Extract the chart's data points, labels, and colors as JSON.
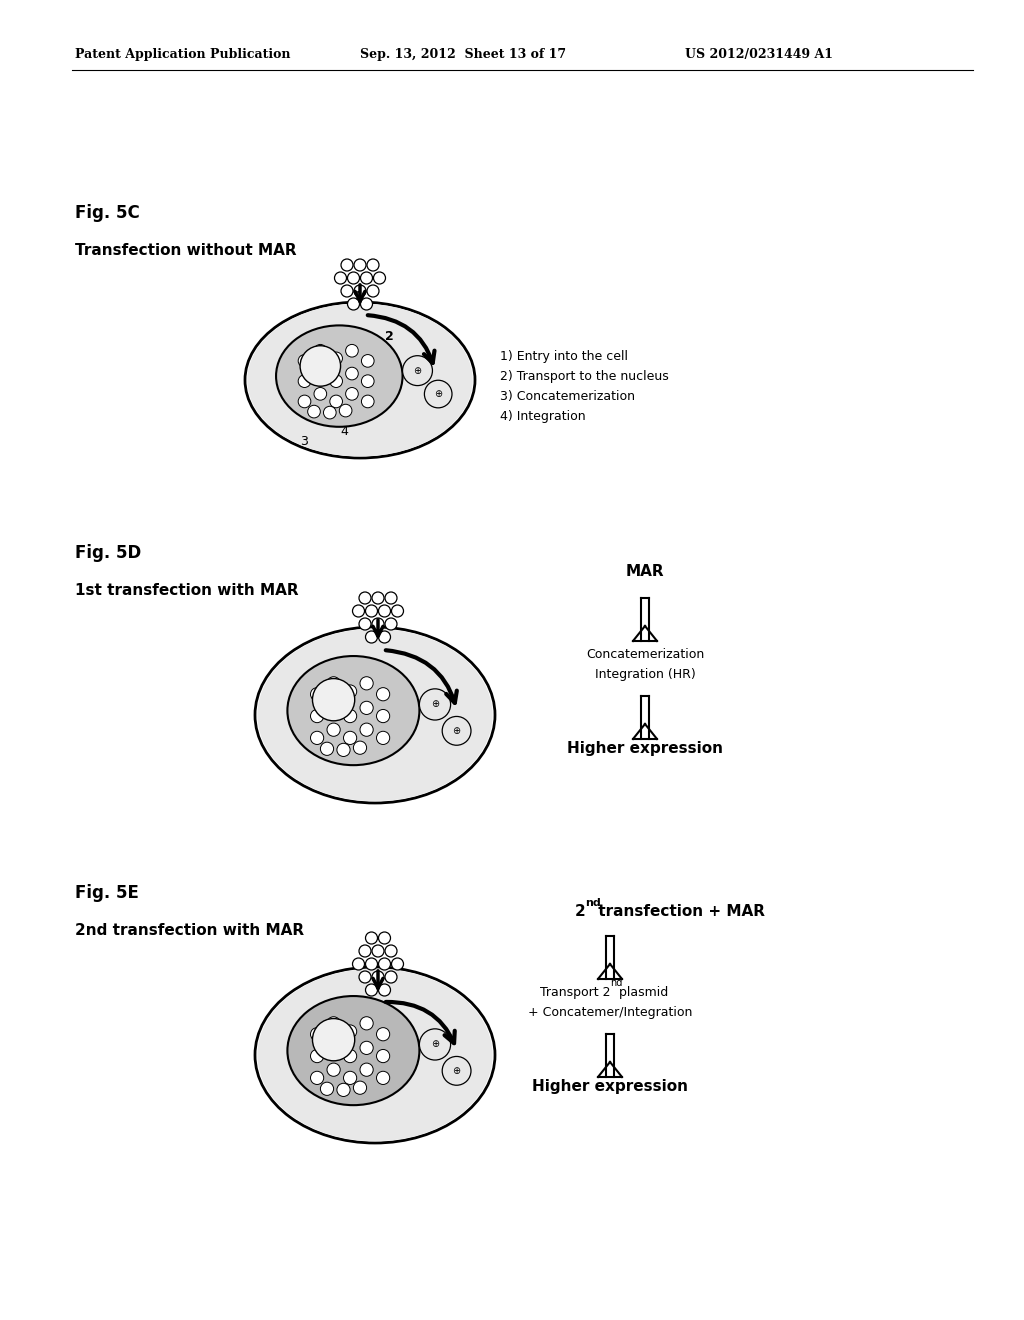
{
  "header_left": "Patent Application Publication",
  "header_mid": "Sep. 13, 2012  Sheet 13 of 17",
  "header_right": "US 2012/0231449 A1",
  "fig5c_label": "Fig. 5C",
  "fig5c_title": "Transfection without MAR",
  "fig5c_notes": [
    "1) Entry into the cell",
    "2) Transport to the nucleus",
    "3) Concatemerization",
    "4) Integration"
  ],
  "fig5d_label": "Fig. 5D",
  "fig5d_title": "1st transfection with MAR",
  "fig5d_right_title": "MAR",
  "fig5d_notes": [
    "Concatemerization",
    "Integration (HR)"
  ],
  "fig5d_bottom": "Higher expression",
  "fig5e_label": "Fig. 5E",
  "fig5e_title": "2nd transfection with MAR",
  "fig5e_right_title_bold": "2",
  "fig5e_right_title_super": "nd",
  "fig5e_right_title_rest": " transfection + MAR",
  "fig5e_notes_line1_bold": "Transport 2",
  "fig5e_notes_line1_super": "nd",
  "fig5e_notes_line1_rest": " plasmid",
  "fig5e_notes_line2": "+ Concatemer/Integration",
  "fig5e_bottom": "Higher expression",
  "bg_color": "#ffffff"
}
